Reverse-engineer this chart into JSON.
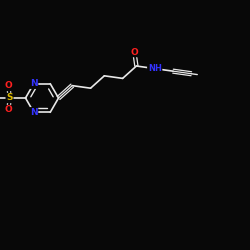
{
  "bg_color": "#080808",
  "bond_color": "#e8e8e8",
  "atom_colors": {
    "N": "#3333ff",
    "O": "#ff2020",
    "S": "#ddbb00",
    "C": "#e8e8e8",
    "H": "#e8e8e8"
  },
  "figsize": [
    2.5,
    2.5
  ],
  "dpi": 100,
  "xlim": [
    0,
    2.5
  ],
  "ylim": [
    0,
    2.5
  ]
}
